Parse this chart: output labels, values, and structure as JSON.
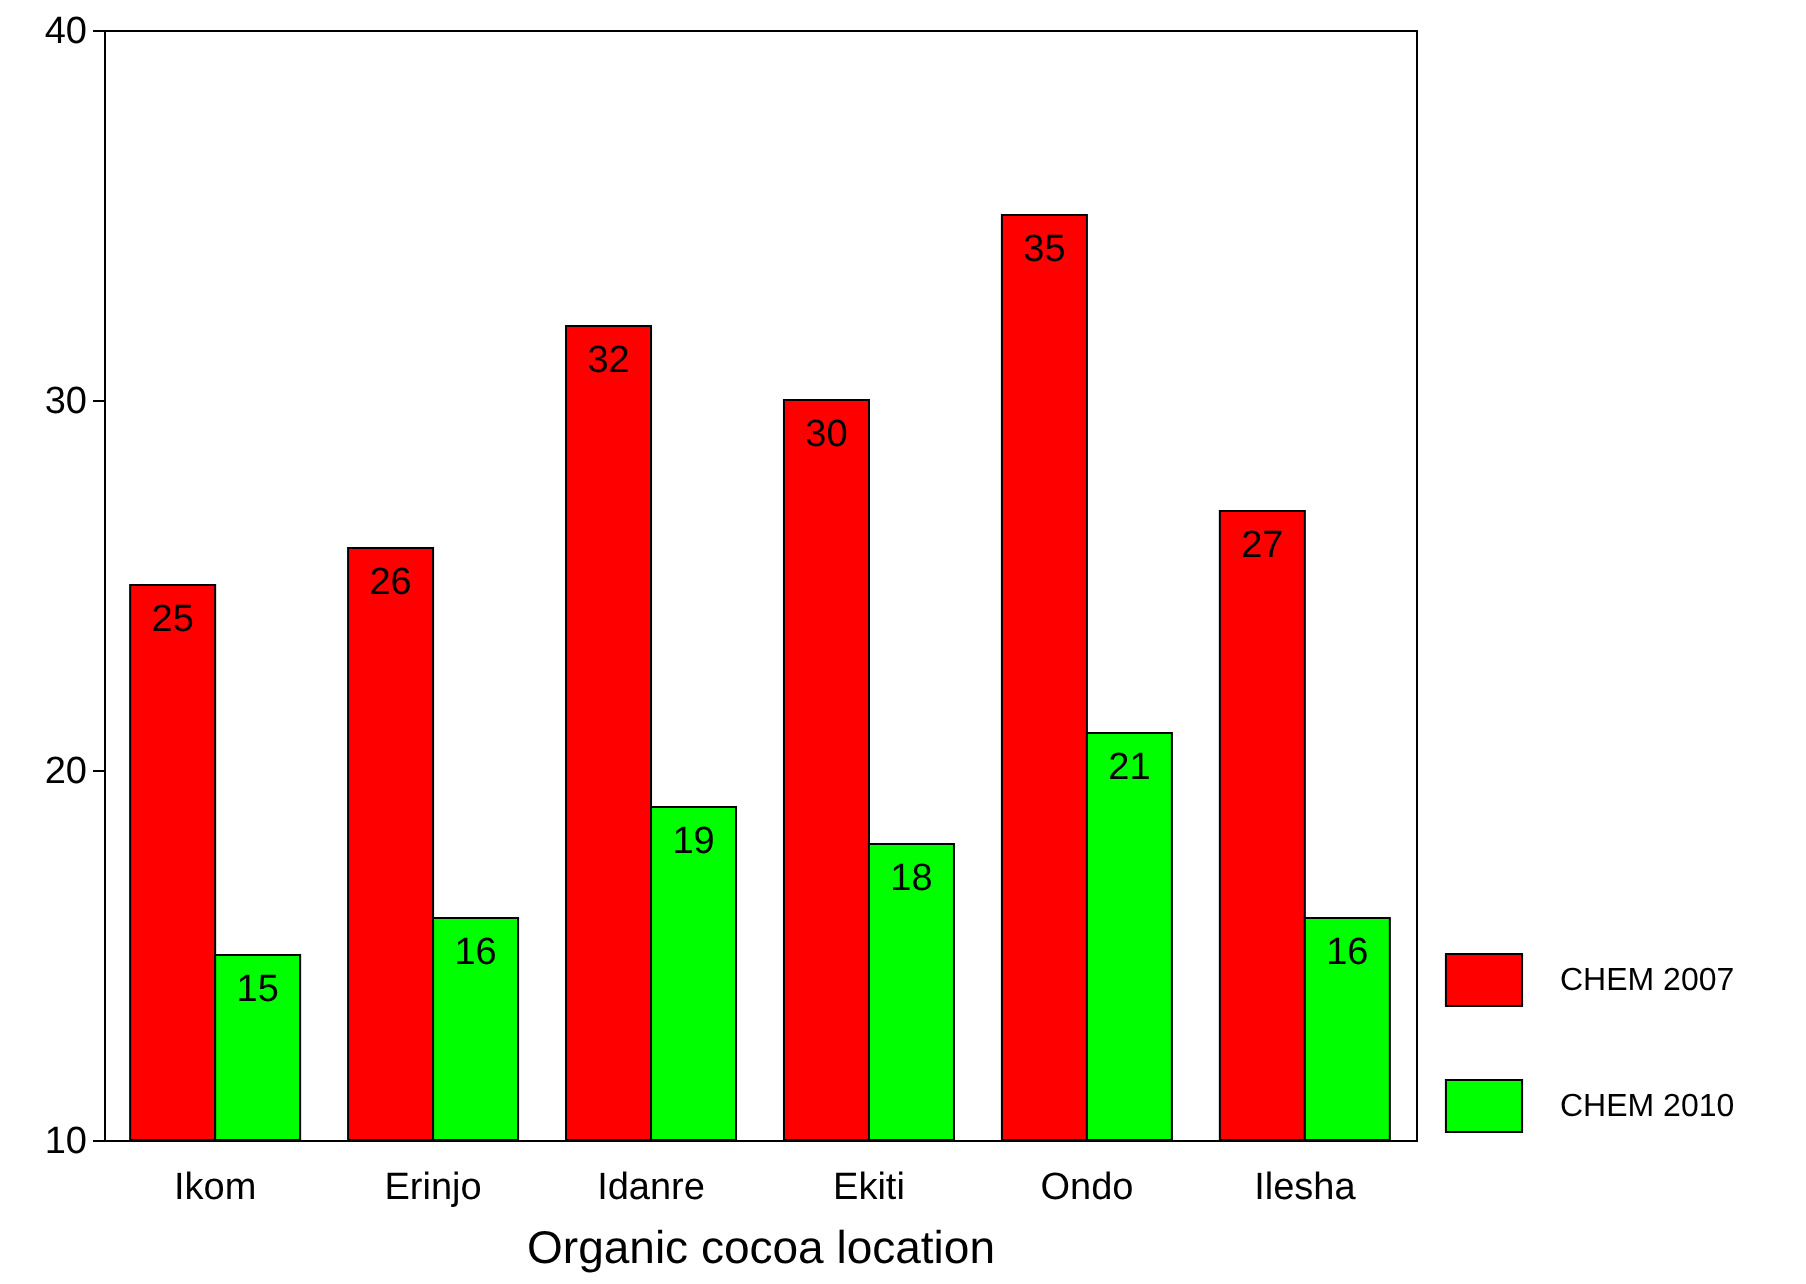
{
  "chart_data": {
    "type": "bar",
    "xlabel": "Organic cocoa location",
    "categories": [
      "Ikom",
      "Erinjo",
      "Idanre",
      "Ekiti",
      "Ondo",
      "Ilesha"
    ],
    "series": [
      {
        "name": "CHEM 2007",
        "color": "#ff0000",
        "values": [
          25,
          26,
          32,
          30,
          35,
          27
        ]
      },
      {
        "name": "CHEM 2010",
        "color": "#00ff00",
        "values": [
          15,
          16,
          19,
          18,
          21,
          16
        ]
      }
    ],
    "ylim": [
      10,
      40
    ],
    "yticks": [
      10,
      20,
      30,
      40
    ],
    "data_labels": true,
    "legend": "right"
  }
}
